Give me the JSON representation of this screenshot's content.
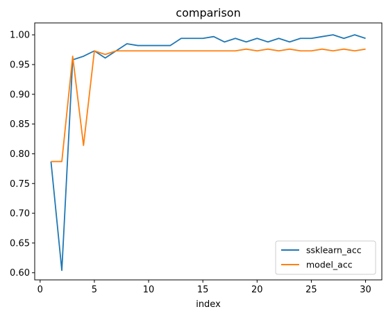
{
  "chart_data": {
    "type": "line",
    "title": "comparison",
    "xlabel": "index",
    "ylabel": "",
    "xlim": [
      -0.5,
      31.5
    ],
    "ylim": [
      0.588,
      1.02
    ],
    "xticks": [
      0,
      5,
      10,
      15,
      20,
      25,
      30
    ],
    "yticks": [
      0.6,
      0.65,
      0.7,
      0.75,
      0.8,
      0.85,
      0.9,
      0.95,
      1.0
    ],
    "ytick_labels": [
      "0.60",
      "0.65",
      "0.70",
      "0.75",
      "0.80",
      "0.85",
      "0.90",
      "0.95",
      "1.00"
    ],
    "grid": false,
    "legend_position": "lower-right",
    "x": [
      1,
      2,
      3,
      4,
      5,
      6,
      7,
      8,
      9,
      10,
      11,
      12,
      13,
      14,
      15,
      16,
      17,
      18,
      19,
      20,
      21,
      22,
      23,
      24,
      25,
      26,
      27,
      28,
      29,
      30
    ],
    "series": [
      {
        "name": "ssklearn_acc",
        "color": "#1f77b4",
        "values": [
          0.787,
          0.604,
          0.958,
          0.964,
          0.973,
          0.961,
          0.973,
          0.985,
          0.982,
          0.982,
          0.982,
          0.982,
          0.994,
          0.994,
          0.994,
          0.997,
          0.988,
          0.994,
          0.988,
          0.994,
          0.988,
          0.994,
          0.988,
          0.994,
          0.994,
          0.997,
          1.0,
          0.994,
          1.0,
          0.994
        ]
      },
      {
        "name": "model_acc",
        "color": "#ff7f0e",
        "values": [
          0.787,
          0.787,
          0.964,
          0.814,
          0.973,
          0.967,
          0.973,
          0.973,
          0.973,
          0.973,
          0.973,
          0.973,
          0.973,
          0.973,
          0.973,
          0.973,
          0.973,
          0.973,
          0.976,
          0.973,
          0.976,
          0.973,
          0.976,
          0.973,
          0.973,
          0.976,
          0.973,
          0.976,
          0.973,
          0.976
        ]
      }
    ]
  }
}
